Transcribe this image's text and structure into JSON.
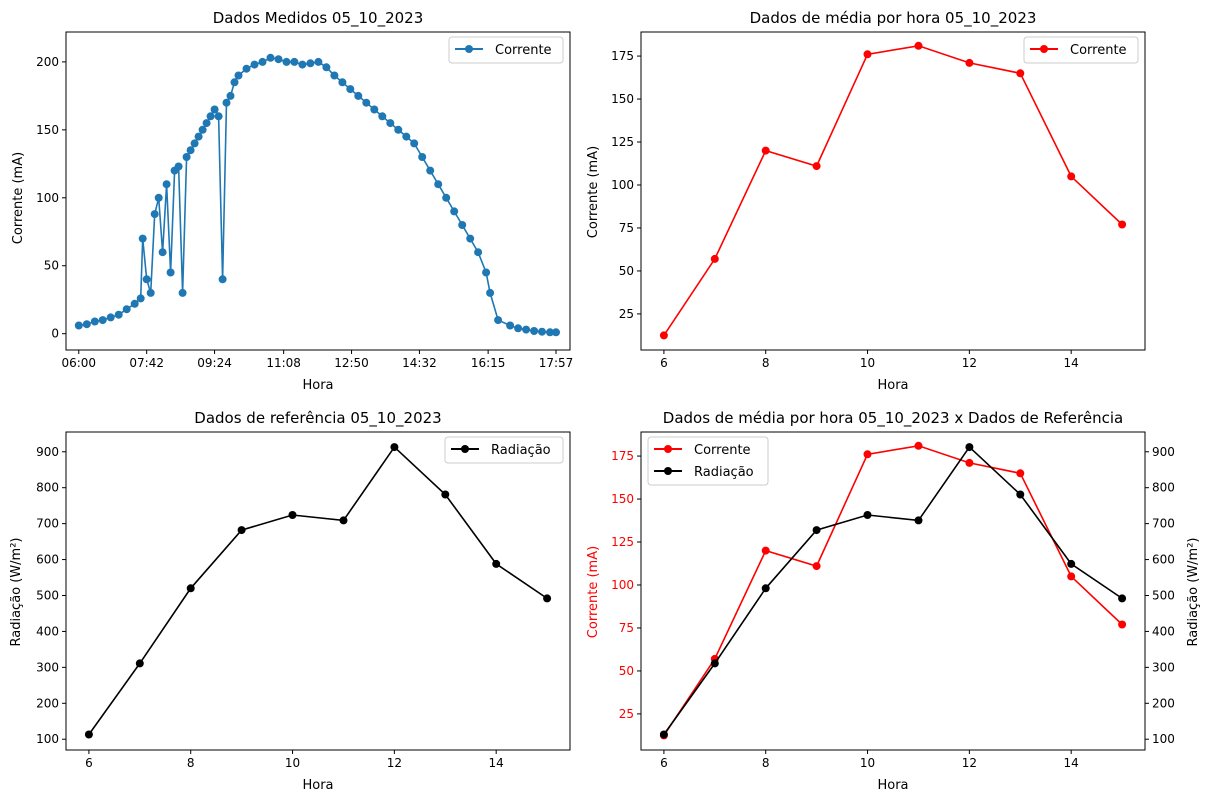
{
  "chart_data": [
    {
      "type": "line",
      "title": "Dados Medidos 05_10_2023",
      "xlabel": "Hora",
      "ylabel": "Corrente (mA)",
      "xlim": [
        5.68,
        18.3
      ],
      "ylim": [
        -12,
        222
      ],
      "x_ticks": [
        6,
        7.7,
        9.4,
        11.13,
        12.83,
        14.53,
        16.25,
        17.95
      ],
      "x_tick_labels": [
        "06:00",
        "07:42",
        "09:24",
        "11:08",
        "12:50",
        "14:32",
        "16:15",
        "17:57"
      ],
      "y_ticks": [
        0,
        50,
        100,
        150,
        200
      ],
      "legend": "top-right",
      "color": "#1f77b4",
      "series": [
        {
          "name": "Corrente",
          "x": [
            6.0,
            6.2,
            6.4,
            6.6,
            6.8,
            7.0,
            7.2,
            7.4,
            7.55,
            7.6,
            7.7,
            7.8,
            7.9,
            8.0,
            8.1,
            8.2,
            8.3,
            8.4,
            8.5,
            8.6,
            8.7,
            8.8,
            8.9,
            9.0,
            9.1,
            9.2,
            9.3,
            9.4,
            9.5,
            9.6,
            9.7,
            9.8,
            9.9,
            10.0,
            10.2,
            10.4,
            10.6,
            10.8,
            11.0,
            11.2,
            11.4,
            11.6,
            11.8,
            12.0,
            12.2,
            12.4,
            12.6,
            12.8,
            13.0,
            13.2,
            13.4,
            13.6,
            13.8,
            14.0,
            14.2,
            14.4,
            14.6,
            14.8,
            15.0,
            15.2,
            15.4,
            15.6,
            15.8,
            16.0,
            16.2,
            16.3,
            16.5,
            16.8,
            17.0,
            17.2,
            17.4,
            17.6,
            17.8,
            17.95
          ],
          "values": [
            6,
            7,
            9,
            10,
            12,
            14,
            18,
            22,
            26,
            70,
            40,
            30,
            88,
            100,
            60,
            110,
            45,
            120,
            123,
            30,
            130,
            135,
            140,
            145,
            150,
            155,
            160,
            165,
            160,
            40,
            170,
            175,
            185,
            190,
            195,
            198,
            200,
            203,
            202,
            200,
            200,
            198,
            199,
            200,
            196,
            190,
            185,
            180,
            175,
            170,
            165,
            160,
            155,
            150,
            145,
            140,
            130,
            120,
            110,
            100,
            90,
            80,
            70,
            60,
            45,
            30,
            10,
            6,
            4,
            3,
            2,
            1.5,
            1,
            1
          ]
        }
      ]
    },
    {
      "type": "line",
      "title": "Dados de média por hora 05_10_2023",
      "xlabel": "Hora",
      "ylabel": "Corrente (mA)",
      "xlim": [
        5.55,
        15.45
      ],
      "ylim": [
        4,
        189
      ],
      "x_ticks": [
        6,
        8,
        10,
        12,
        14
      ],
      "y_ticks": [
        25,
        50,
        75,
        100,
        125,
        150,
        175
      ],
      "legend": "top-right",
      "color": "#ff0000",
      "series": [
        {
          "name": "Corrente",
          "x": [
            6,
            7,
            8,
            9,
            10,
            11,
            12,
            13,
            14,
            15
          ],
          "values": [
            12.5,
            57,
            120,
            111,
            176,
            181,
            171,
            165,
            105,
            77
          ]
        }
      ]
    },
    {
      "type": "line",
      "title": "Dados de referência 05_10_2023",
      "xlabel": "Hora",
      "ylabel": "Radiação (W/m²)",
      "xlim": [
        5.55,
        15.45
      ],
      "ylim": [
        70,
        955
      ],
      "x_ticks": [
        6,
        8,
        10,
        12,
        14
      ],
      "y_ticks": [
        100,
        200,
        300,
        400,
        500,
        600,
        700,
        800,
        900
      ],
      "legend": "top-right",
      "color": "#000000",
      "series": [
        {
          "name": "Radiação",
          "x": [
            6,
            7,
            8,
            9,
            10,
            11,
            12,
            13,
            14,
            15
          ],
          "values": [
            113,
            311,
            520,
            682,
            724,
            709,
            913,
            781,
            588,
            492
          ]
        }
      ]
    },
    {
      "type": "line",
      "title": "Dados de média por hora 05_10_2023 x Dados de Referência",
      "xlabel": "Hora",
      "ylabel": "Corrente (mA)",
      "ylabel_right": "Radiação (W/m²)",
      "xlim": [
        5.55,
        15.45
      ],
      "ylim": [
        4,
        189
      ],
      "ylim_right": [
        70,
        955
      ],
      "x_ticks": [
        6,
        8,
        10,
        12,
        14
      ],
      "y_ticks": [
        25,
        50,
        75,
        100,
        125,
        150,
        175
      ],
      "y_ticks_right": [
        100,
        200,
        300,
        400,
        500,
        600,
        700,
        800,
        900
      ],
      "legend": "top-left",
      "series": [
        {
          "name": "Corrente",
          "axis": "left",
          "color": "#ff0000",
          "x": [
            6,
            7,
            8,
            9,
            10,
            11,
            12,
            13,
            14,
            15
          ],
          "values": [
            12.5,
            57,
            120,
            111,
            176,
            181,
            171,
            165,
            105,
            77
          ]
        },
        {
          "name": "Radiação",
          "axis": "right",
          "color": "#000000",
          "x": [
            6,
            7,
            8,
            9,
            10,
            11,
            12,
            13,
            14,
            15
          ],
          "values": [
            113,
            311,
            520,
            682,
            724,
            709,
            913,
            781,
            588,
            492
          ]
        }
      ]
    }
  ]
}
